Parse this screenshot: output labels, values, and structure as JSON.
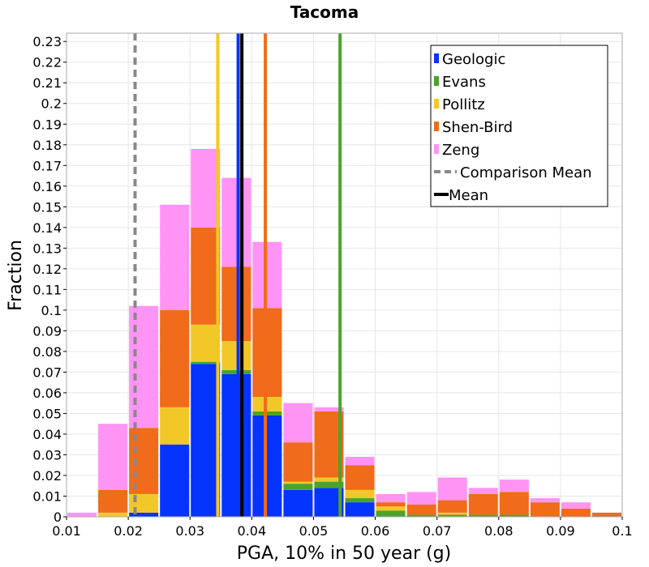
{
  "chart_data": {
    "type": "bar",
    "stacked": true,
    "title": "Tacoma",
    "xlabel": "PGA, 10% in 50 year (g)",
    "ylabel": "Fraction",
    "xlim": [
      0.01,
      0.1
    ],
    "ylim": [
      0,
      0.234
    ],
    "x_ticks": [
      "0.01",
      "0.02",
      "0.03",
      "0.04",
      "0.05",
      "0.06",
      "0.07",
      "0.08",
      "0.09",
      "0.1"
    ],
    "y_ticks": [
      "0",
      "0.01",
      "0.02",
      "0.03",
      "0.04",
      "0.05",
      "0.06",
      "0.07",
      "0.08",
      "0.09",
      "0.1",
      "0.11",
      "0.12",
      "0.13",
      "0.14",
      "0.15",
      "0.16",
      "0.17",
      "0.18",
      "0.19",
      "0.2",
      "0.21",
      "0.22",
      "0.23"
    ],
    "grid": true,
    "legend_position": "top-right",
    "bin_edges": [
      0.01,
      0.015,
      0.02,
      0.025,
      0.03,
      0.035,
      0.04,
      0.045,
      0.05,
      0.055,
      0.06,
      0.065,
      0.07,
      0.075,
      0.08,
      0.085,
      0.09,
      0.095,
      0.1
    ],
    "series": [
      {
        "name": "Geologic",
        "color": "#0533ff",
        "values": [
          0,
          0,
          0.002,
          0.035,
          0.074,
          0.069,
          0.049,
          0.013,
          0.014,
          0.007,
          0,
          0,
          0,
          0,
          0,
          0,
          0,
          0
        ]
      },
      {
        "name": "Evans",
        "color": "#4ca32c",
        "values": [
          0,
          0,
          0,
          0,
          0.001,
          0.002,
          0.002,
          0.003,
          0.003,
          0.002,
          0.003,
          0.001,
          0.001,
          0.001,
          0.001,
          0,
          0,
          0
        ]
      },
      {
        "name": "Pollitz",
        "color": "#f2c828",
        "values": [
          0,
          0.002,
          0.009,
          0.018,
          0.018,
          0.014,
          0.007,
          0.001,
          0.002,
          0.004,
          0.002,
          0,
          0.001,
          0,
          0,
          0,
          0,
          0
        ]
      },
      {
        "name": "Shen-Bird",
        "color": "#f06b1a",
        "values": [
          0,
          0.011,
          0.032,
          0.047,
          0.047,
          0.036,
          0.043,
          0.019,
          0.032,
          0.012,
          0.002,
          0.005,
          0.006,
          0.01,
          0.011,
          0.007,
          0.004,
          0.002
        ]
      },
      {
        "name": "Zeng",
        "color": "#ff94f5",
        "values": [
          0.002,
          0.032,
          0.059,
          0.051,
          0.038,
          0.043,
          0.032,
          0.019,
          0.002,
          0.004,
          0.004,
          0.006,
          0.011,
          0.003,
          0.006,
          0.002,
          0.003,
          0
        ]
      }
    ],
    "vertical_lines": [
      {
        "name": "Geologic mean",
        "color": "#0533ff",
        "x": 0.0378,
        "style": "solid"
      },
      {
        "name": "Evans mean",
        "color": "#4ca32c",
        "x": 0.0543,
        "style": "solid"
      },
      {
        "name": "Pollitz mean",
        "color": "#f2c828",
        "x": 0.0345,
        "style": "solid"
      },
      {
        "name": "Shen-Bird mean",
        "color": "#f06b1a",
        "x": 0.0422,
        "style": "solid"
      },
      {
        "name": "Comparison Mean",
        "color": "#888888",
        "x": 0.0211,
        "style": "dashed"
      },
      {
        "name": "Mean",
        "color": "#000000",
        "x": 0.0384,
        "style": "solid"
      }
    ],
    "legend": [
      {
        "label": "Geologic",
        "color": "#0533ff",
        "marker": "bar"
      },
      {
        "label": "Evans",
        "color": "#4ca32c",
        "marker": "bar"
      },
      {
        "label": "Pollitz",
        "color": "#f2c828",
        "marker": "bar"
      },
      {
        "label": "Shen-Bird",
        "color": "#f06b1a",
        "marker": "bar"
      },
      {
        "label": "Zeng",
        "color": "#ff94f5",
        "marker": "bar"
      },
      {
        "label": "Comparison Mean",
        "color": "#888888",
        "marker": "dashed-line"
      },
      {
        "label": "Mean",
        "color": "#000000",
        "marker": "solid-line"
      }
    ]
  }
}
